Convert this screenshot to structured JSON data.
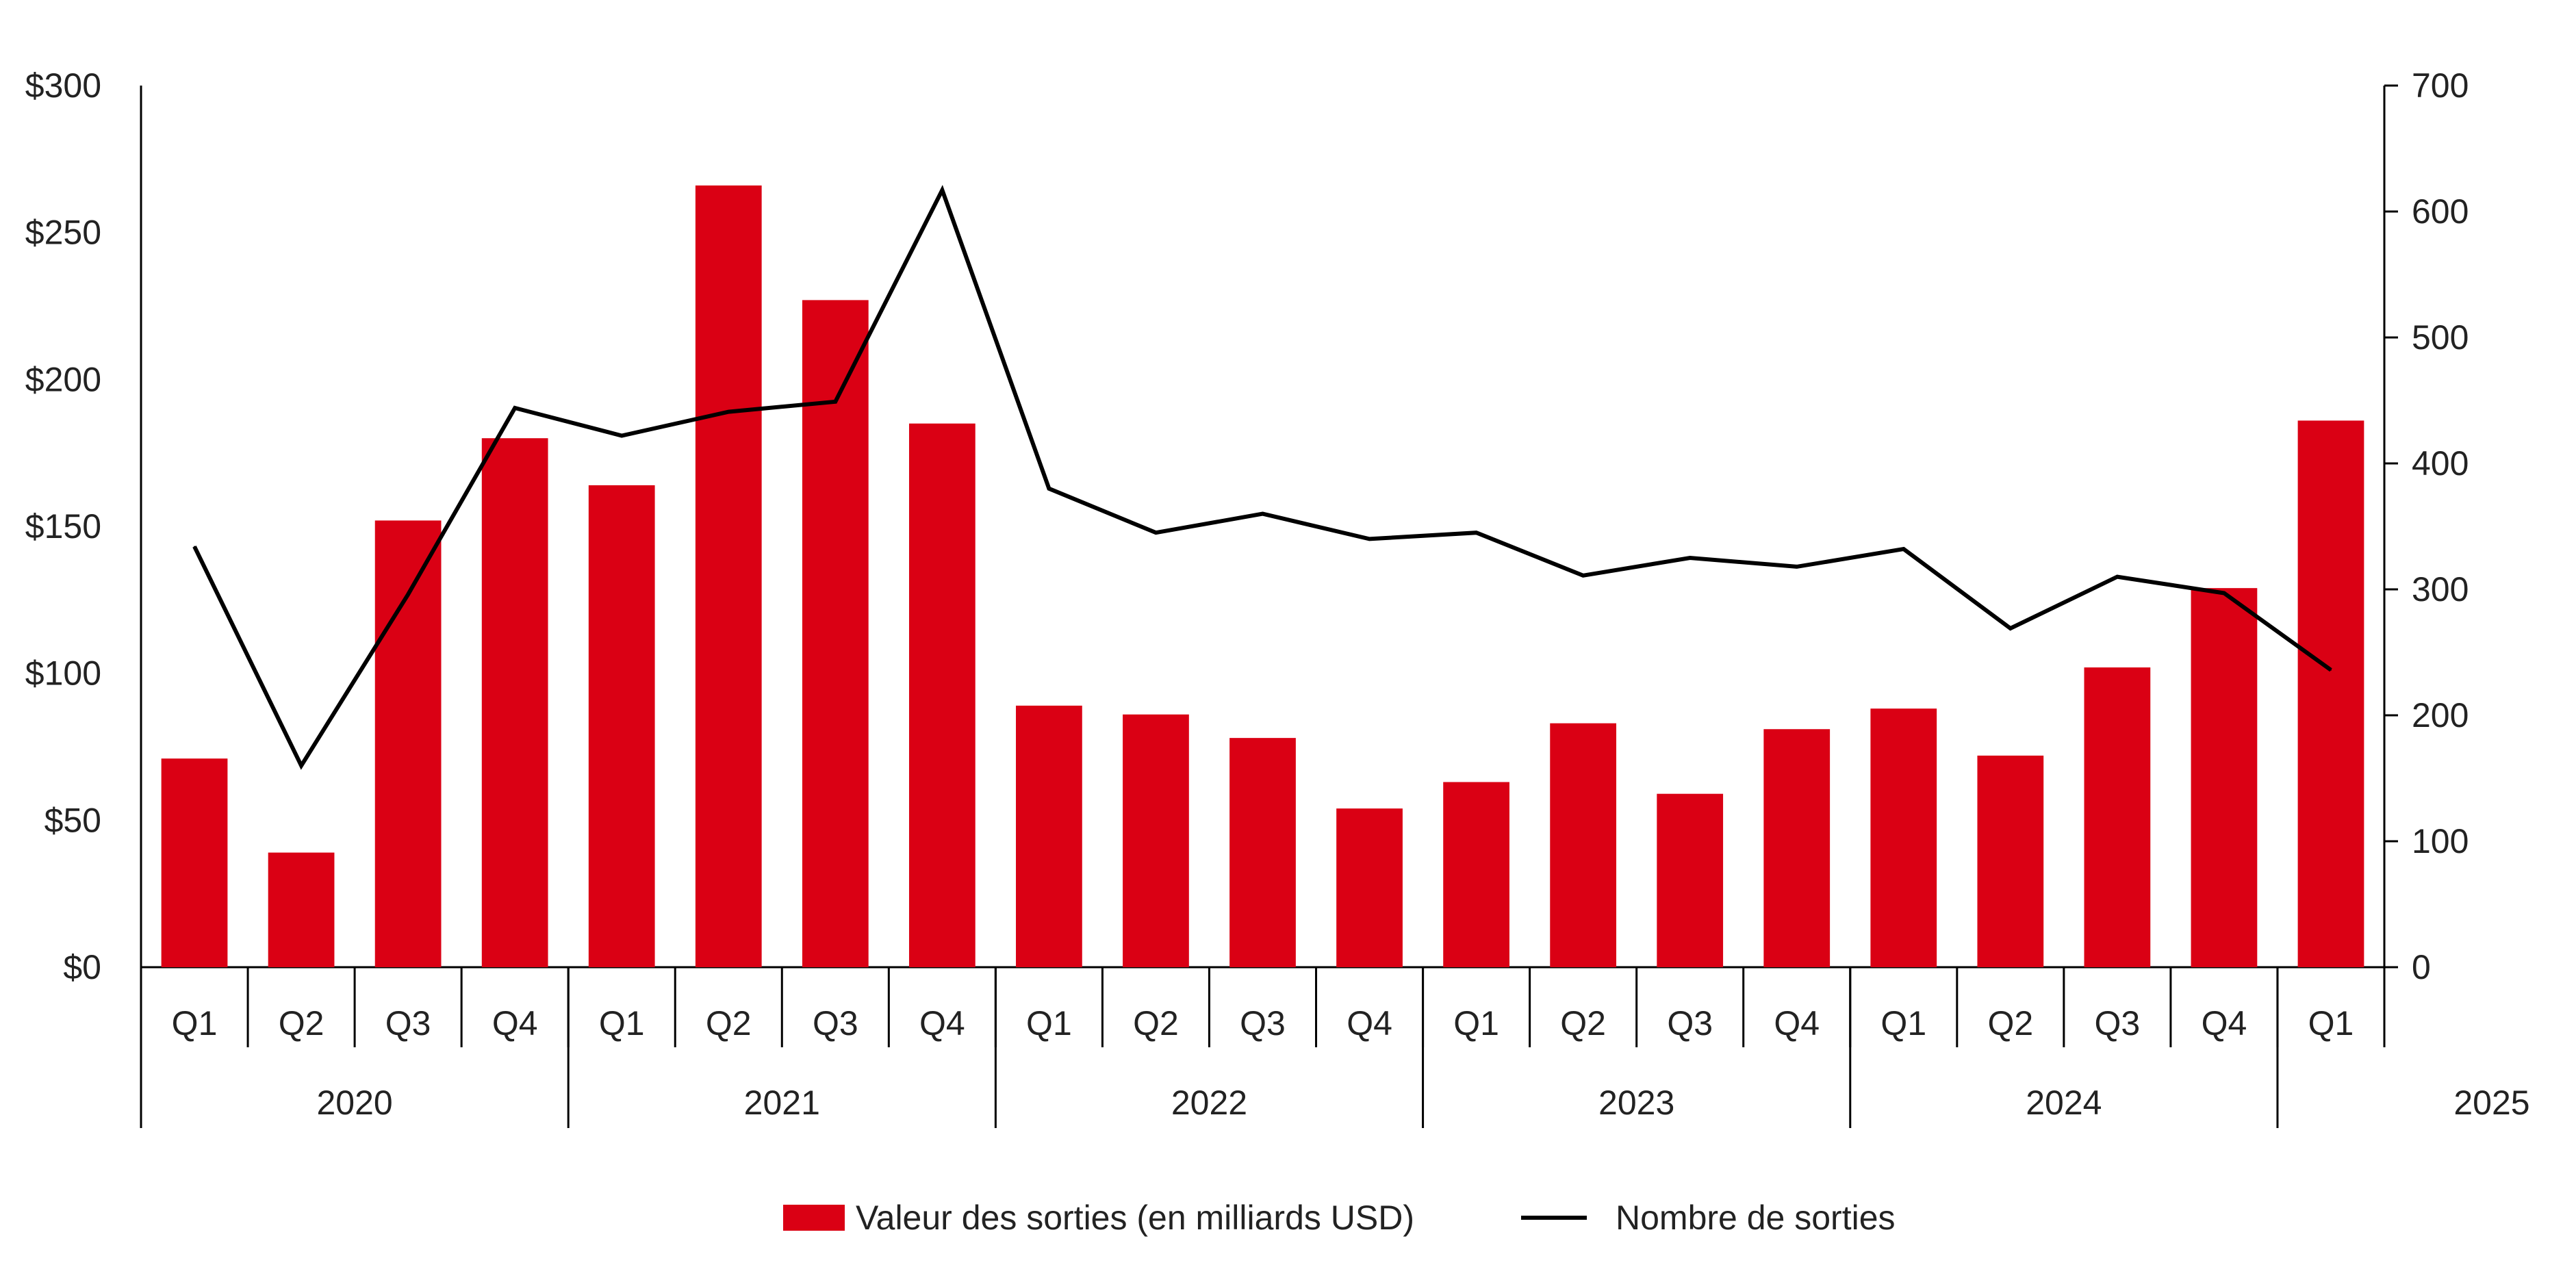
{
  "chart_data": {
    "type": "bar",
    "categories": [
      "Q1",
      "Q2",
      "Q3",
      "Q4",
      "Q1",
      "Q2",
      "Q3",
      "Q4",
      "Q1",
      "Q2",
      "Q3",
      "Q4",
      "Q1",
      "Q2",
      "Q3",
      "Q4",
      "Q1",
      "Q2",
      "Q3",
      "Q4",
      "Q1"
    ],
    "years": [
      {
        "label": "2020",
        "quarters": 4
      },
      {
        "label": "2021",
        "quarters": 4
      },
      {
        "label": "2022",
        "quarters": 4
      },
      {
        "label": "2023",
        "quarters": 4
      },
      {
        "label": "2024",
        "quarters": 4
      },
      {
        "label": "2025",
        "quarters": 1
      }
    ],
    "series": [
      {
        "name": "Valeur des sorties (en milliards USD)",
        "type": "bar",
        "axis": "left",
        "color": "#da0014",
        "values": [
          71,
          39,
          152,
          180,
          164,
          266,
          227,
          185,
          89,
          86,
          78,
          54,
          63,
          83,
          59,
          81,
          88,
          72,
          102,
          129,
          186
        ]
      },
      {
        "name": "Nombre de sorties",
        "type": "line",
        "axis": "right",
        "color": "#000000",
        "values": [
          334,
          160,
          296,
          444,
          422,
          441,
          449,
          617,
          380,
          345,
          360,
          340,
          345,
          311,
          325,
          318,
          332,
          269,
          310,
          297,
          236
        ]
      }
    ],
    "y_left": {
      "ylim": [
        0,
        300
      ],
      "ticks": [
        0,
        50,
        100,
        150,
        200,
        250,
        300
      ],
      "tick_labels": [
        "$0",
        "$50",
        "$100",
        "$150",
        "$200",
        "$250",
        "$300"
      ]
    },
    "y_right": {
      "ylim": [
        0,
        700
      ],
      "ticks": [
        0,
        100,
        200,
        300,
        400,
        500,
        600,
        700
      ],
      "tick_labels": [
        "0",
        "100",
        "200",
        "300",
        "400",
        "500",
        "600",
        "700"
      ]
    },
    "grid": false,
    "legend_position": "bottom-center"
  }
}
